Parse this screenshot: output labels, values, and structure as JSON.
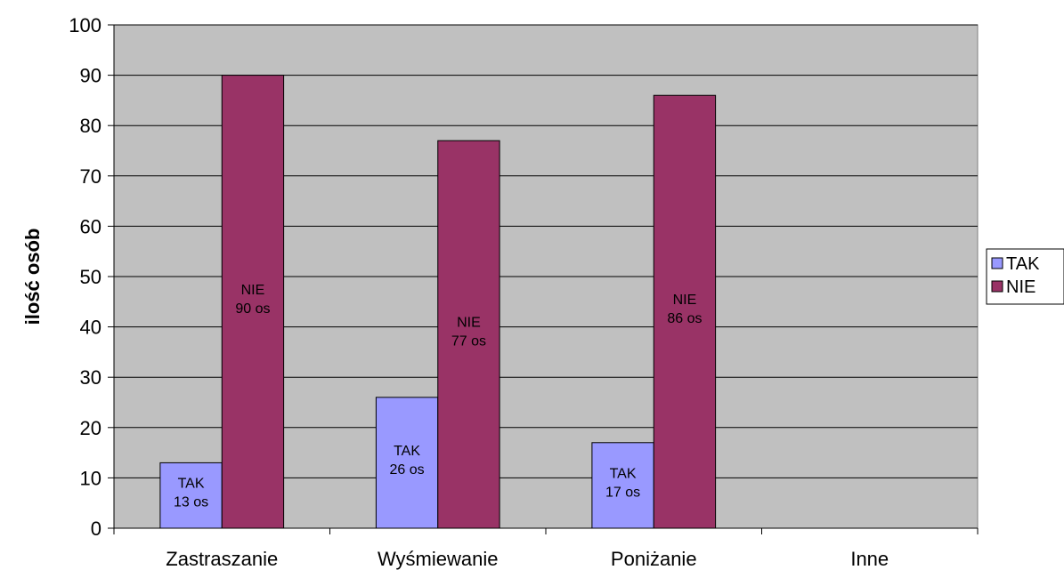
{
  "chart_data": {
    "type": "bar",
    "categories": [
      "Zastraszanie",
      "Wyśmiewanie",
      "Poniżanie",
      "Inne"
    ],
    "series": [
      {
        "name": "TAK",
        "values": [
          13,
          26,
          17,
          null
        ],
        "color": "#9999FF",
        "labels": [
          "TAK|13 os",
          "TAK|26 os",
          "TAK|17 os",
          ""
        ]
      },
      {
        "name": "NIE",
        "values": [
          90,
          77,
          86,
          null
        ],
        "color": "#993366",
        "labels": [
          "NIE|90 os",
          "NIE|77 os",
          "NIE|86 os",
          ""
        ]
      }
    ],
    "ylabel": "ilość osób",
    "ylim": [
      0,
      100
    ],
    "yticks": [
      0,
      10,
      20,
      30,
      40,
      50,
      60,
      70,
      80,
      90,
      100
    ],
    "plot_background": "#C0C0C0",
    "grid": true,
    "legend_position": "right"
  }
}
